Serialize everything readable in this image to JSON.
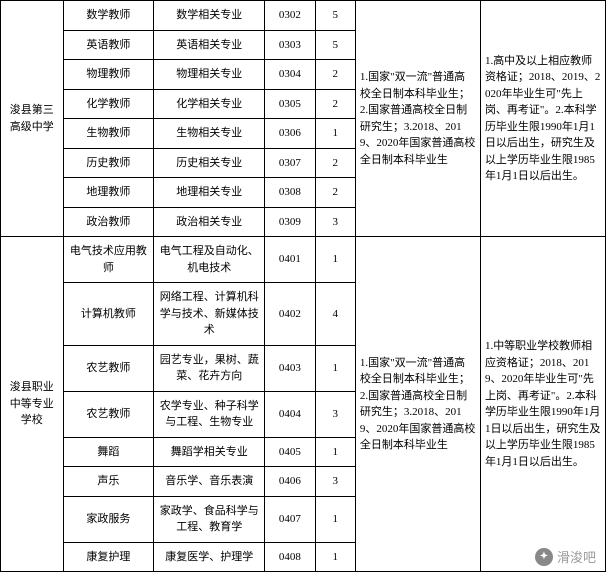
{
  "schools": [
    {
      "name": "浚县第三高级中学",
      "rows": [
        {
          "position": "数学教师",
          "major": "数学相关专业",
          "code": "0302",
          "count": "5"
        },
        {
          "position": "英语教师",
          "major": "英语相关专业",
          "code": "0303",
          "count": "5"
        },
        {
          "position": "物理教师",
          "major": "物理相关专业",
          "code": "0304",
          "count": "2"
        },
        {
          "position": "化学教师",
          "major": "化学相关专业",
          "code": "0305",
          "count": "2"
        },
        {
          "position": "生物教师",
          "major": "生物相关专业",
          "code": "0306",
          "count": "1"
        },
        {
          "position": "历史教师",
          "major": "历史相关专业",
          "code": "0307",
          "count": "2"
        },
        {
          "position": "地理教师",
          "major": "地理相关专业",
          "code": "0308",
          "count": "2"
        },
        {
          "position": "政治教师",
          "major": "政治相关专业",
          "code": "0309",
          "count": "3"
        }
      ],
      "req1": "1.国家\"双一流\"普通高校全日制本科毕业生；2.国家普通高校全日制研究生；3.2018、2019、2020年国家普通高校全日制本科毕业生",
      "req2": "1.高中及以上相应教师资格证；2018、2019、2020年毕业生可\"先上岗、再考证\"。2.本科学历毕业生限1990年1月1日以后出生，研究生及以上学历毕业生限1985年1月1日以后出生。"
    },
    {
      "name": "浚县职业中等专业学校",
      "rows": [
        {
          "position": "电气技术应用教师",
          "major": "电气工程及自动化、机电技术",
          "code": "0401",
          "count": "1"
        },
        {
          "position": "计算机教师",
          "major": "网络工程、计算机科学与技术、新媒体技术",
          "code": "0402",
          "count": "4"
        },
        {
          "position": "农艺教师",
          "major": "园艺专业，果树、蔬菜、花卉方向",
          "code": "0403",
          "count": "1"
        },
        {
          "position": "农艺教师",
          "major": "农学专业、种子科学与工程、生物专业",
          "code": "0404",
          "count": "3"
        },
        {
          "position": "舞蹈",
          "major": "舞蹈学相关专业",
          "code": "0405",
          "count": "1"
        },
        {
          "position": "声乐",
          "major": "音乐学、音乐表演",
          "code": "0406",
          "count": "3"
        },
        {
          "position": "家政服务",
          "major": "家政学、食品科学与工程、教育学",
          "code": "0407",
          "count": "1"
        },
        {
          "position": "康复护理",
          "major": "康复医学、护理学",
          "code": "0408",
          "count": "1"
        }
      ],
      "req1": "1.国家\"双一流\"普通高校全日制本科毕业生；2.国家普通高校全日制研究生；3.2018、2019、2020年国家普通高校全日制本科毕业生",
      "req2": "1.中等职业学校教师相应资格证；2018、2019、2020年毕业生可\"先上岗、再考证\"。2.本科学历毕业生限1990年1月1日以后出生，研究生及以上学历毕业生限1985年1月1日以后出生。"
    }
  ],
  "watermark": "滑浚吧"
}
